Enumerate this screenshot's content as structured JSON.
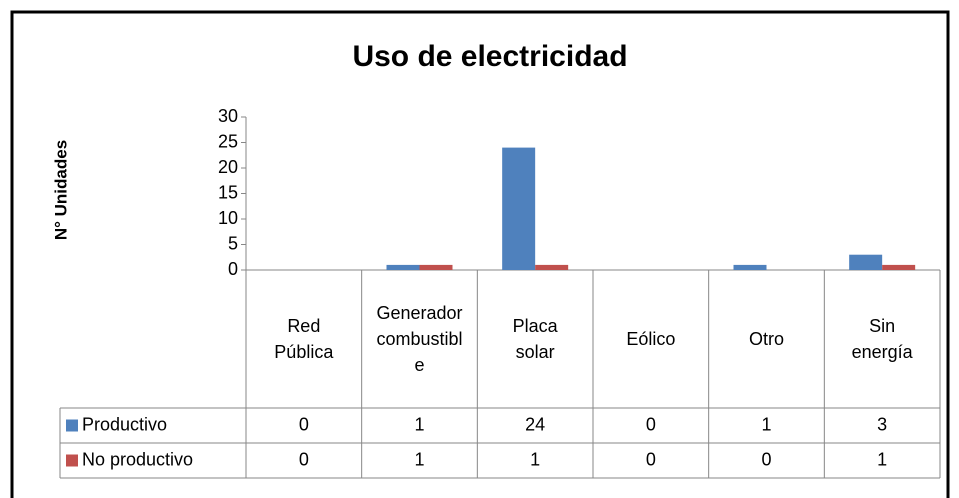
{
  "chart_data": {
    "type": "bar",
    "title": "Uso de electricidad",
    "ylabel": "N° Unidades",
    "categories": [
      "Red Pública",
      "Generador combustible",
      "Placa solar",
      "Eólico",
      "Otro",
      "Sin energía"
    ],
    "series": [
      {
        "name": "Productivo",
        "color": "#4f81bd",
        "values": [
          0,
          1,
          24,
          0,
          1,
          3
        ]
      },
      {
        "name": "No productivo",
        "color": "#c0504d",
        "values": [
          0,
          1,
          1,
          0,
          0,
          1
        ]
      }
    ],
    "ylim": [
      0,
      30
    ],
    "yticks": [
      0,
      5,
      10,
      15,
      20,
      25,
      30
    ],
    "grid": false,
    "data_table": true
  }
}
